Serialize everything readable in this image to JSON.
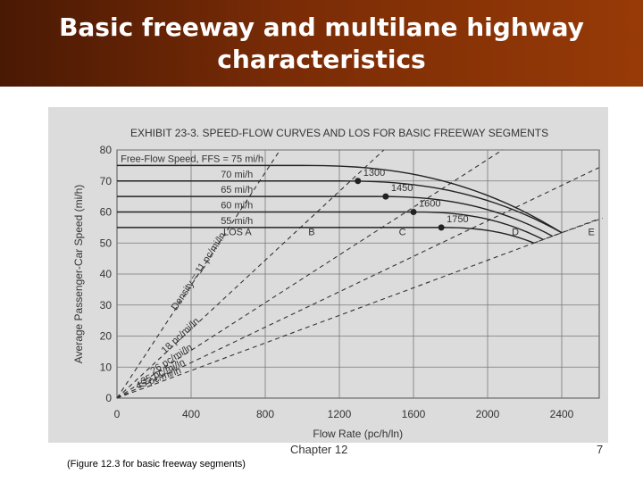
{
  "slide": {
    "title": "Basic freeway and multilane highway characteristics",
    "chapter": "Chapter 12",
    "page_number": "7",
    "caption": "(Figure 12.3 for basic freeway segments)"
  },
  "colors": {
    "title_bg": "#7a2c06",
    "title_text": "#ffffff",
    "figure_bg": "#dcdcdc"
  },
  "chart_data": {
    "type": "line",
    "title": "EXHIBIT 23-3.  SPEED-FLOW CURVES AND LOS FOR BASIC FREEWAY SEGMENTS",
    "xlabel": "Flow Rate (pc/h/ln)",
    "ylabel": "Average Passenger-Car Speed (mi/h)",
    "xlim": [
      0,
      2600
    ],
    "ylim": [
      0,
      80
    ],
    "xticks": [
      "0",
      "400",
      "800",
      "1200",
      "1600",
      "2000",
      "2400"
    ],
    "yticks": [
      "0",
      "10",
      "20",
      "30",
      "40",
      "50",
      "60",
      "70",
      "80"
    ],
    "grid": true,
    "legend_title": "Free-Flow Speed, FFS = 75 mi/h",
    "series": [
      {
        "name": "Free-Flow Speed, FFS = 75 mi/h",
        "breakpoint": 1000,
        "capacity": 2400,
        "ffs": 75,
        "end_speed": 53.3
      },
      {
        "name": "70 mi/h",
        "breakpoint": 1200,
        "capacity": 2400,
        "ffs": 70,
        "end_speed": 53.3
      },
      {
        "name": "65 mi/h",
        "breakpoint": 1400,
        "capacity": 2350,
        "ffs": 65,
        "end_speed": 52.2
      },
      {
        "name": "60 mi/h",
        "breakpoint": 1600,
        "capacity": 2300,
        "ffs": 60,
        "end_speed": 51.1
      },
      {
        "name": "55 mi/h",
        "breakpoint": 1750,
        "capacity": 2250,
        "ffs": 55,
        "end_speed": 50.0
      }
    ],
    "max_service_points": [
      {
        "label": "1300",
        "x": 1300,
        "y": 70
      },
      {
        "label": "1450",
        "x": 1450,
        "y": 65
      },
      {
        "label": "1600",
        "x": 1600,
        "y": 60
      },
      {
        "label": "1750",
        "x": 1750,
        "y": 55
      }
    ],
    "los_labels": [
      {
        "label": "LOS A",
        "x": 650,
        "y": 52.5
      },
      {
        "label": "B",
        "x": 1050,
        "y": 52.5
      },
      {
        "label": "C",
        "x": 1540,
        "y": 52.5
      },
      {
        "label": "D",
        "x": 2150,
        "y": 52.5
      },
      {
        "label": "E",
        "x": 2560,
        "y": 52.5
      }
    ],
    "density_lines": [
      {
        "label": "Density = 11 pc/mi/ln",
        "density": 11
      },
      {
        "label": "18 pc/mi/ln",
        "density": 18
      },
      {
        "label": "26 pc/mi/ln",
        "density": 26
      },
      {
        "label": "35 pc/mi/ln",
        "density": 35
      },
      {
        "label": "45 pc/mi/ln",
        "density": 45
      }
    ]
  }
}
